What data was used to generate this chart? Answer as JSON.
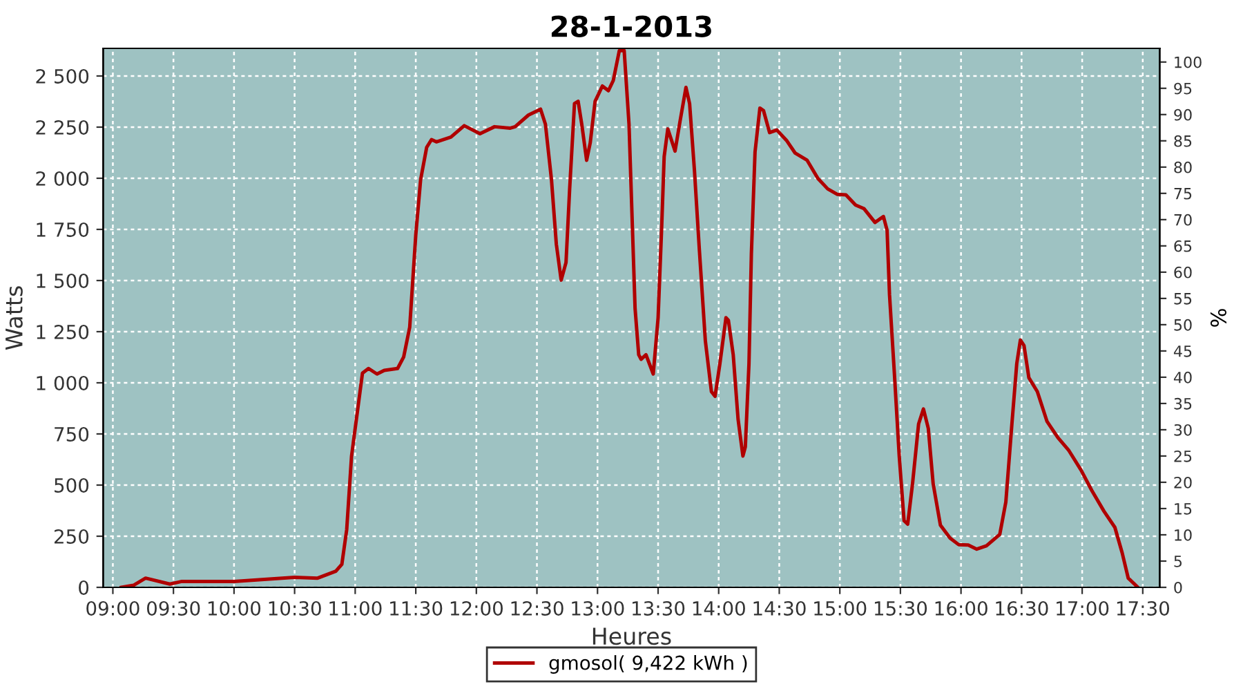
{
  "chart_data": {
    "type": "line",
    "title": "28-1-2013",
    "xlabel": "Heures",
    "ylabel": "Watts",
    "y2label": "%",
    "xlim": [
      8.92,
      17.64
    ],
    "xticks": [
      {
        "value": 9,
        "label": "09:00"
      },
      {
        "value": 9.5,
        "label": "09:30"
      },
      {
        "value": 10,
        "label": "10:00"
      },
      {
        "value": 10.5,
        "label": "10:30"
      },
      {
        "value": 11,
        "label": "11:00"
      },
      {
        "value": 11.5,
        "label": "11:30"
      },
      {
        "value": 12,
        "label": "12:00"
      },
      {
        "value": 12.5,
        "label": "12:30"
      },
      {
        "value": 13,
        "label": "13:00"
      },
      {
        "value": 13.5,
        "label": "13:30"
      },
      {
        "value": 14,
        "label": "14:00"
      },
      {
        "value": 14.5,
        "label": "14:30"
      },
      {
        "value": 15,
        "label": "15:00"
      },
      {
        "value": 15.5,
        "label": "15:30"
      },
      {
        "value": 16,
        "label": "16:00"
      },
      {
        "value": 16.5,
        "label": "16:30"
      },
      {
        "value": 17,
        "label": "17:00"
      },
      {
        "value": 17.5,
        "label": "17:30"
      }
    ],
    "ylim": [
      0,
      2635
    ],
    "yticks": [
      0,
      250,
      500,
      750,
      {
        "value": 1000,
        "label": "1 000"
      },
      {
        "value": 1250,
        "label": "1 250"
      },
      {
        "value": 1500,
        "label": "1 500"
      },
      {
        "value": 1750,
        "label": "1 750"
      },
      {
        "value": 2000,
        "label": "2 000"
      },
      {
        "value": 2250,
        "label": "2 250"
      },
      {
        "value": 2500,
        "label": "2 500"
      }
    ],
    "y2lim": [
      0,
      102.6
    ],
    "y2ticks": [
      0,
      5,
      10,
      15,
      20,
      25,
      30,
      35,
      40,
      45,
      50,
      55,
      60,
      65,
      70,
      75,
      80,
      85,
      90,
      95,
      100
    ],
    "grid": true,
    "legend": "bottom",
    "marker": "none",
    "line_style": "solid",
    "series": [
      {
        "name": "gmosol( 9,422 kWh )",
        "color": "#b00000",
        "x": [
          9.07,
          9.17,
          9.27,
          9.47,
          9.57,
          10.0,
          10.5,
          10.69,
          10.84,
          10.89,
          10.93,
          10.97,
          11.01,
          11.06,
          11.11,
          11.18,
          11.24,
          11.35,
          11.4,
          11.45,
          11.5,
          11.54,
          11.59,
          11.63,
          11.67,
          11.79,
          11.9,
          12.03,
          12.15,
          12.28,
          12.32,
          12.43,
          12.53,
          12.57,
          12.62,
          12.66,
          12.7,
          12.74,
          12.77,
          12.81,
          12.84,
          12.87,
          12.91,
          12.94,
          12.98,
          13.04,
          13.09,
          13.13,
          13.18,
          13.22,
          13.26,
          13.29,
          13.31,
          13.34,
          13.36,
          13.4,
          13.46,
          13.5,
          13.53,
          13.55,
          13.58,
          13.64,
          13.68,
          13.73,
          13.76,
          13.8,
          13.84,
          13.89,
          13.94,
          13.97,
          14.01,
          14.06,
          14.08,
          14.12,
          14.16,
          14.2,
          14.22,
          14.25,
          14.27,
          14.3,
          14.34,
          14.37,
          14.42,
          14.48,
          14.56,
          14.63,
          14.73,
          14.82,
          14.9,
          14.98,
          15.05,
          15.13,
          15.2,
          15.29,
          15.36,
          15.39,
          15.41,
          15.45,
          15.49,
          15.53,
          15.56,
          15.6,
          15.65,
          15.69,
          15.73,
          15.77,
          15.83,
          15.91,
          15.98,
          16.06,
          16.13,
          16.21,
          16.32,
          16.37,
          16.42,
          16.46,
          16.49,
          16.52,
          16.56,
          16.63,
          16.71,
          16.8,
          16.89,
          16.99,
          17.08,
          17.18,
          17.27,
          17.33,
          17.38,
          17.46
        ],
        "values": [
          0,
          10,
          45,
          16,
          29,
          29,
          49,
          45,
          79,
          113,
          282,
          642,
          822,
          1047,
          1070,
          1043,
          1061,
          1070,
          1126,
          1272,
          1723,
          1993,
          2151,
          2189,
          2178,
          2201,
          2257,
          2218,
          2252,
          2245,
          2252,
          2309,
          2338,
          2264,
          1993,
          1678,
          1502,
          1588,
          1948,
          2365,
          2376,
          2264,
          2088,
          2174,
          2376,
          2451,
          2428,
          2478,
          2624,
          2624,
          2264,
          1723,
          1363,
          1137,
          1115,
          1137,
          1043,
          1318,
          1768,
          2106,
          2241,
          2133,
          2275,
          2444,
          2365,
          2038,
          1655,
          1205,
          957,
          934,
          1093,
          1318,
          1306,
          1137,
          822,
          642,
          687,
          1093,
          1633,
          2128,
          2343,
          2331,
          2223,
          2236,
          2185,
          2124,
          2088,
          1998,
          1948,
          1921,
          1919,
          1869,
          1851,
          1784,
          1813,
          1745,
          1430,
          1047,
          642,
          326,
          309,
          507,
          799,
          872,
          777,
          507,
          304,
          241,
          209,
          207,
          187,
          203,
          259,
          417,
          799,
          1093,
          1209,
          1182,
          1025,
          957,
          811,
          732,
          669,
          574,
          473,
          372,
          293,
          169,
          45,
          0
        ]
      }
    ]
  }
}
